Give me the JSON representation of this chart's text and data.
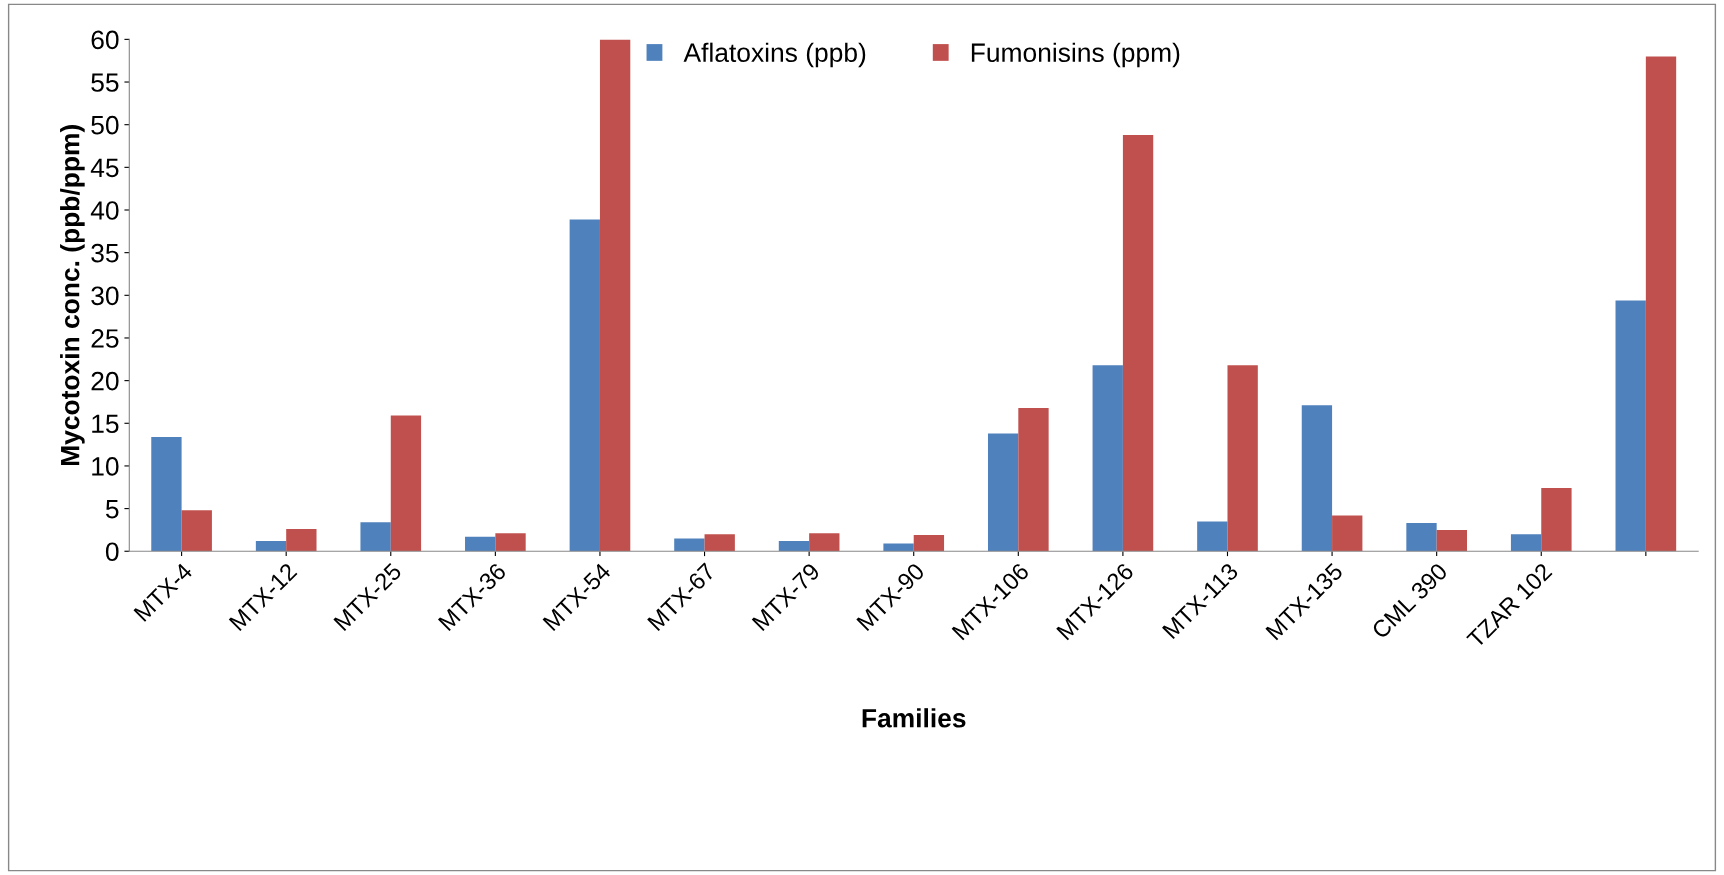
{
  "chart_data": {
    "type": "bar",
    "xlabel": "Families",
    "ylabel": "Mycotoxin conc. (ppb/ppm)",
    "categories": [
      "MTX-4",
      "MTX-12",
      "MTX-25",
      "MTX-36",
      "MTX-54",
      "MTX-67",
      "MTX-79",
      "MTX-90",
      "MTX-106",
      "MTX-126",
      "MTX-113",
      "MTX-135",
      "CML 390",
      "TZAR 102",
      null
    ],
    "series": [
      {
        "name": "Aflatoxins (ppb)",
        "color": "#4f81bd",
        "values": [
          13.4,
          1.2,
          3.4,
          1.7,
          38.9,
          1.5,
          1.2,
          0.9,
          13.8,
          21.8,
          3.5,
          17.1,
          3.3,
          2.0,
          29.4
        ]
      },
      {
        "name": "Fumonisins (ppm)",
        "color": "#c0504d",
        "values": [
          4.8,
          2.6,
          15.9,
          2.1,
          60,
          2.0,
          2.1,
          1.9,
          16.8,
          48.8,
          21.8,
          4.2,
          2.5,
          7.4,
          58.0
        ]
      }
    ],
    "ylim": [
      0,
      60
    ],
    "yticks": [
      0,
      5,
      10,
      15,
      20,
      25,
      30,
      35,
      40,
      45,
      50,
      55,
      60
    ],
    "grid": false,
    "legend": "top"
  }
}
